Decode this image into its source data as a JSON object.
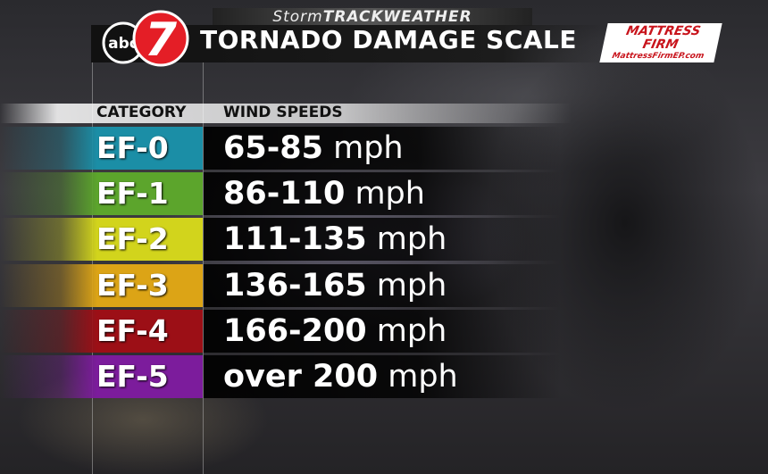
{
  "brand": {
    "prefix": "Storm",
    "middle": "TRACK",
    "suffix": "WEATHER"
  },
  "logo": {
    "network": "abc",
    "channel": "7"
  },
  "title": "TORNADO DAMAGE SCALE",
  "sponsor": {
    "name_line1": "MATTRESS",
    "name_line2": "FIRM",
    "url": "MattressFirmEP.com"
  },
  "table": {
    "headers": [
      "CATEGORY",
      "WIND SPEEDS"
    ],
    "rows": [
      {
        "category": "EF-0",
        "speed": "65-85",
        "unit": "mph",
        "color": "#1b8ea6"
      },
      {
        "category": "EF-1",
        "speed": "86-110",
        "unit": "mph",
        "color": "#5ca52c"
      },
      {
        "category": "EF-2",
        "speed": "111-135",
        "unit": "mph",
        "color": "#d2d41c"
      },
      {
        "category": "EF-3",
        "speed": "136-165",
        "unit": "mph",
        "color": "#dca416"
      },
      {
        "category": "EF-4",
        "speed": "166-200",
        "unit": "mph",
        "color": "#9c0f16"
      },
      {
        "category": "EF-5",
        "speed": "over 200",
        "unit": "mph",
        "color": "#7c1c9c"
      }
    ]
  }
}
